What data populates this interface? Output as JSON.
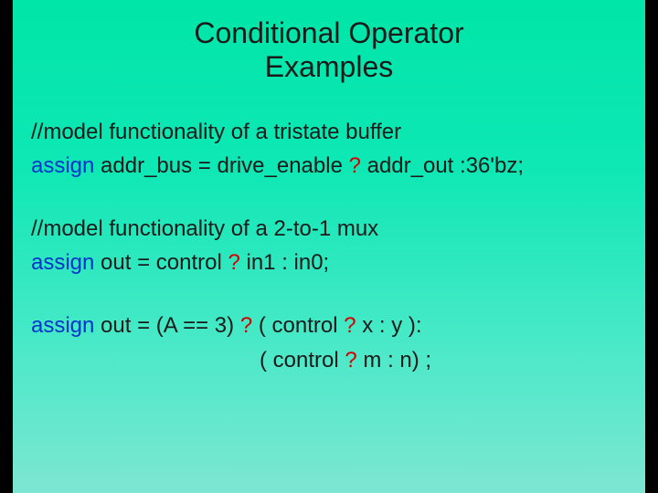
{
  "colors": {
    "background_black": "#000000",
    "slide_gradient_top": "#00e5a8",
    "slide_gradient_bottom": "#7de6d2",
    "text": "#1a1a1a",
    "keyword": "#0033cc",
    "question": "#d40000"
  },
  "title": {
    "line1": "Conditional Operator",
    "line2": "Examples",
    "fontsize": 32
  },
  "body_fontsize": 24,
  "lines": {
    "c1": "//model functionality of a tristate buffer",
    "l1_kw": "assign",
    "l1_a": " addr_bus = drive_enable ",
    "l1_q": "?",
    "l1_b": " addr_out :36'bz;",
    "c2": "//model functionality of a 2-to-1 mux",
    "l2_kw": "assign",
    "l2_a": " out = control ",
    "l2_q": "?",
    "l2_b": " in1 : in0;",
    "l3_kw": "assign",
    "l3_a": " out = (A == 3) ",
    "l3_q1": "?",
    "l3_b": " ( control ",
    "l3_q2": "?",
    "l3_c": " x : y ):",
    "l4_a": "( control ",
    "l4_q": "?",
    "l4_b": " m : n) ;"
  }
}
